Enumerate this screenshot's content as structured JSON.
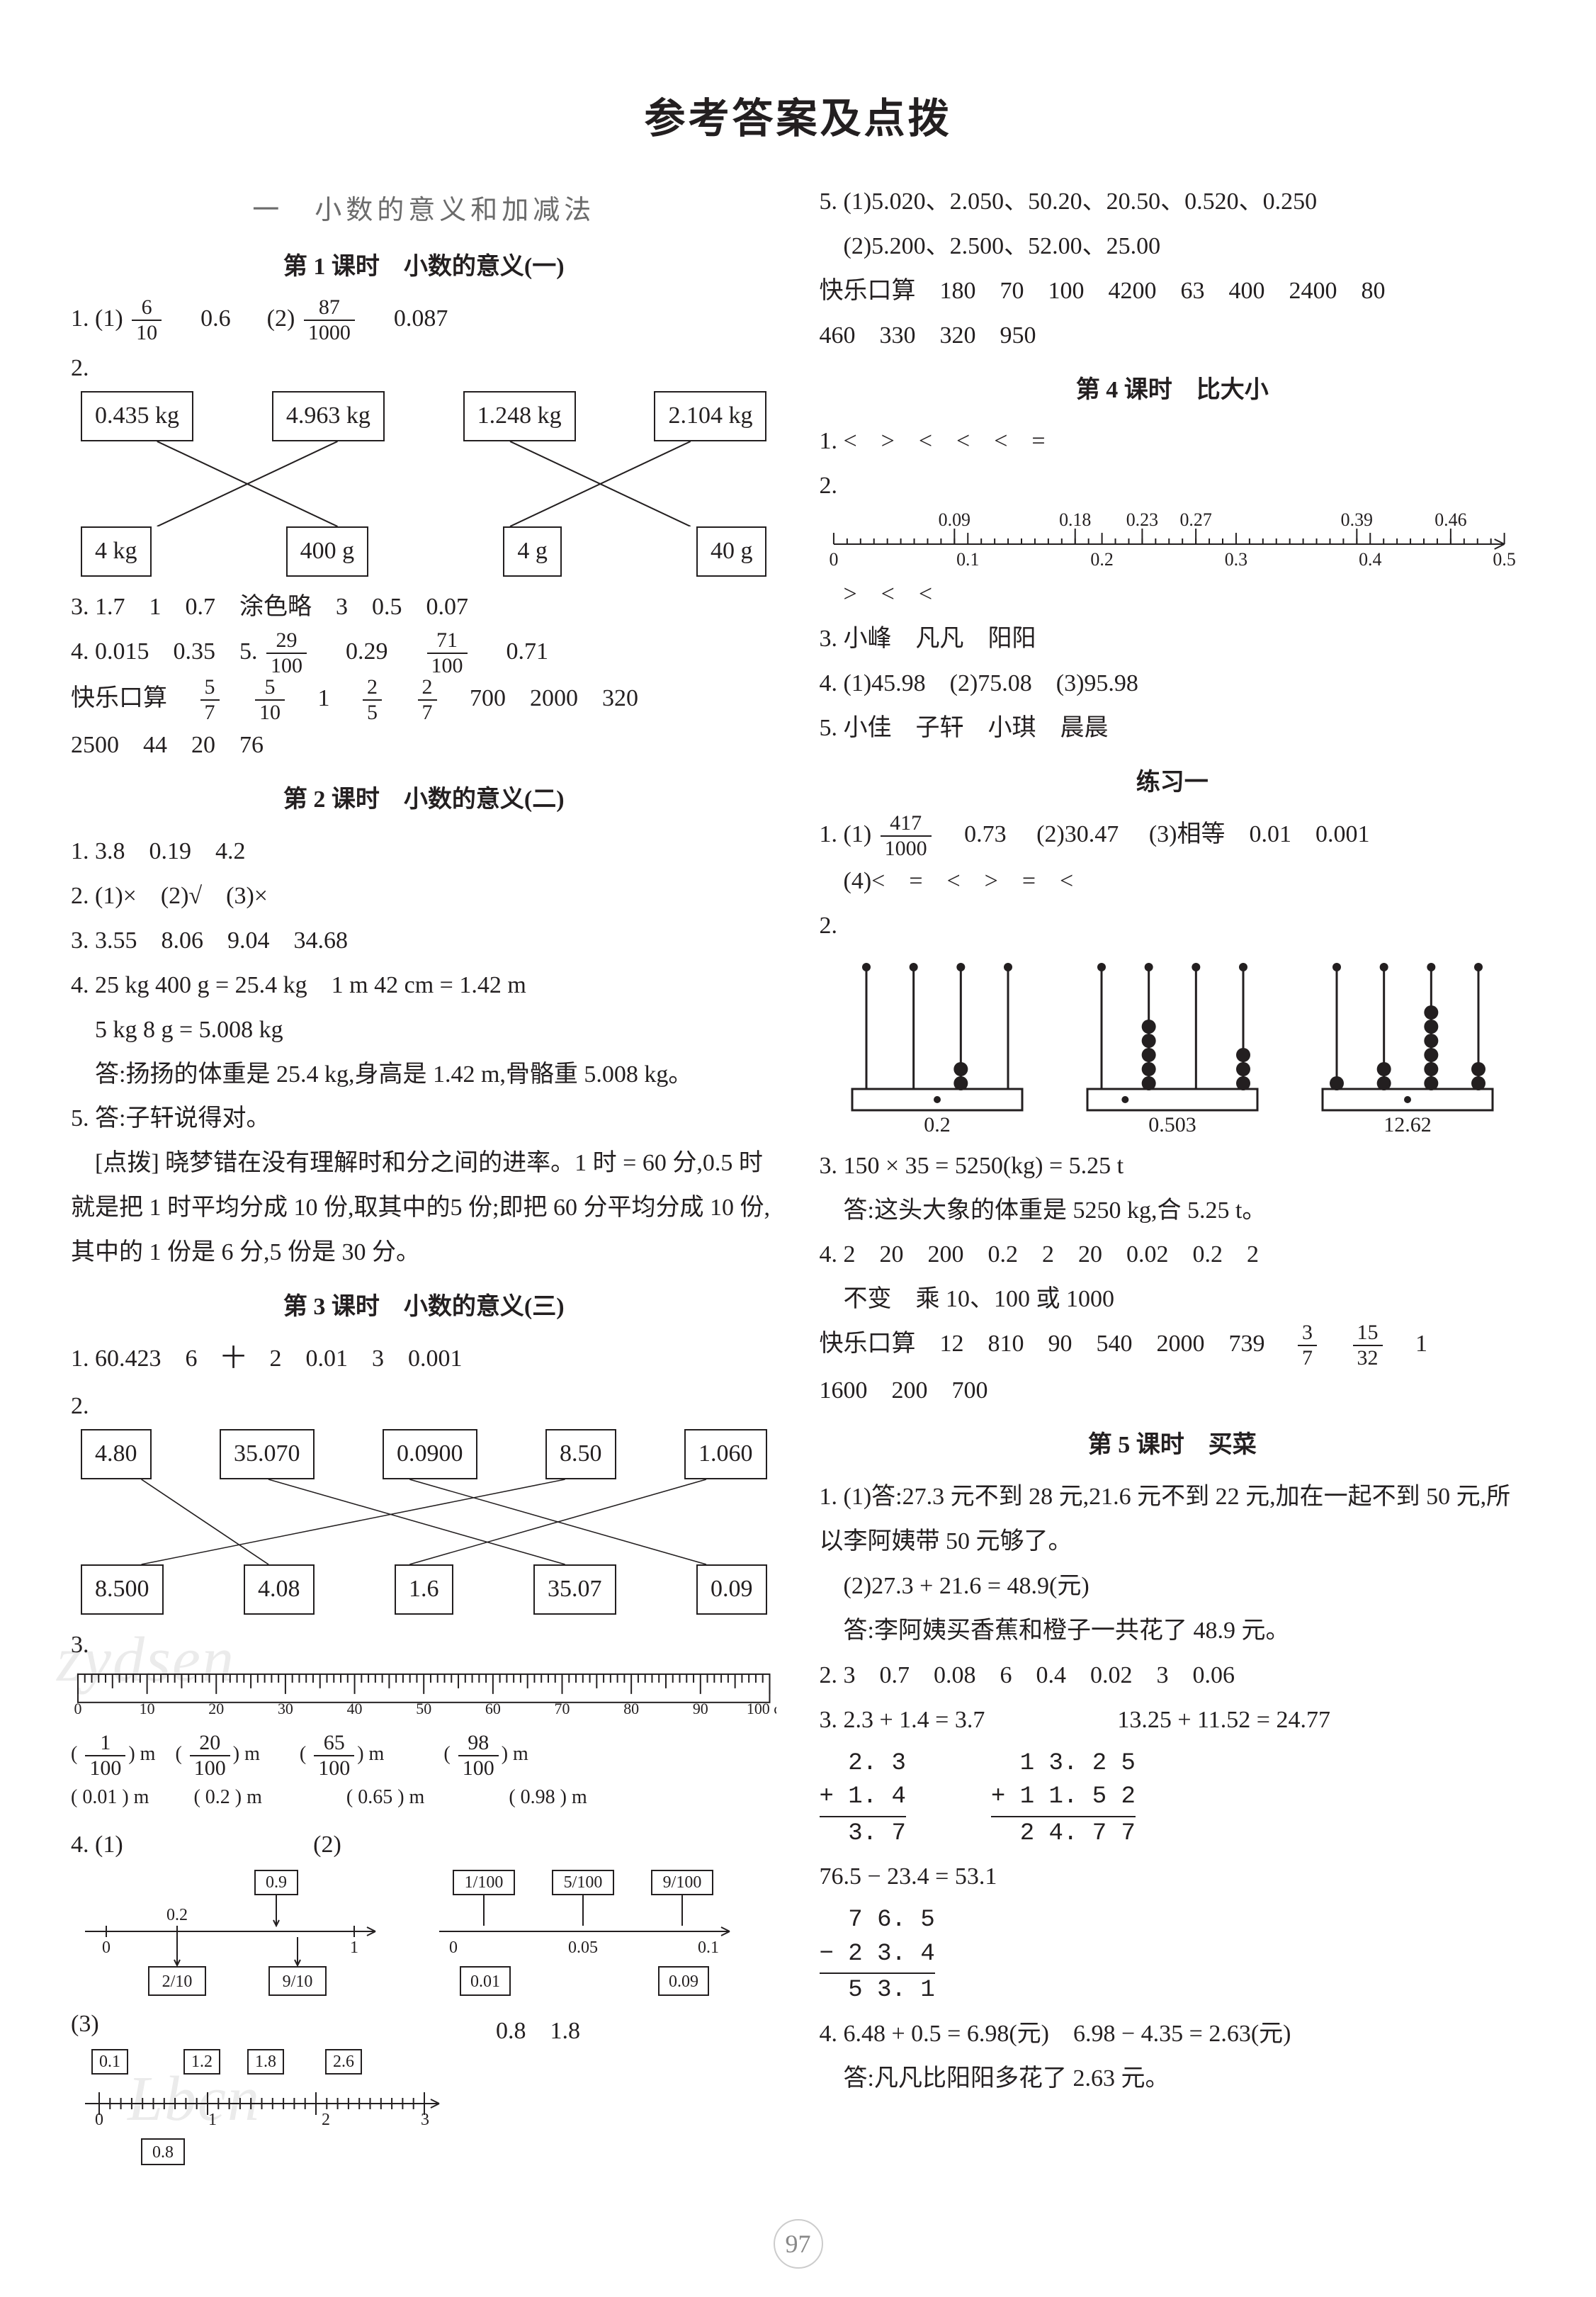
{
  "page_title": "参考答案及点拨",
  "page_number": "97",
  "watermarks": [
    "zydsen",
    "Lbcn"
  ],
  "left": {
    "unit_title": "一　小数的意义和加减法",
    "l1": {
      "title": "第 1 课时　小数的意义(一)",
      "q1_prefix": "1. (1)",
      "q1_frac_num": "6",
      "q1_frac_den": "10",
      "q1_v1": "0.6",
      "q1_p2": "(2)",
      "q1_frac2_num": "87",
      "q1_frac2_den": "1000",
      "q1_v2": "0.087",
      "q2_prefix": "2.",
      "q2_top": [
        "0.435 kg",
        "4.963 kg",
        "1.248 kg",
        "2.104 kg"
      ],
      "q2_bot": [
        "4 kg",
        "400 g",
        "4 g",
        "40 g"
      ],
      "q3": "3. 1.7　1　0.7　涂色略　3　0.5　0.07",
      "q4_prefix": "4. 0.015　0.35　5.",
      "q4_frac1_num": "29",
      "q4_frac1_den": "100",
      "q4_v1": "0.29",
      "q4_frac2_num": "71",
      "q4_frac2_den": "100",
      "q4_v2": "0.71",
      "klks_label": "快乐口算",
      "klks_f1_num": "5",
      "klks_f1_den": "7",
      "klks_f2_num": "5",
      "klks_f2_den": "10",
      "klks_v1": "1",
      "klks_f3_num": "2",
      "klks_f3_den": "5",
      "klks_f4_num": "2",
      "klks_f4_den": "7",
      "klks_tail": "700　2000　320",
      "klks_line2": "2500　44　20　76"
    },
    "l2": {
      "title": "第 2 课时　小数的意义(二)",
      "q1": "1. 3.8　0.19　4.2",
      "q2": "2. (1)×　(2)√　(3)×",
      "q3": "3. 3.55　8.06　9.04　34.68",
      "q4a": "4. 25 kg 400 g = 25.4 kg　1 m 42 cm = 1.42 m",
      "q4b": "　5 kg 8 g = 5.008 kg",
      "q4c": "　答:扬扬的体重是 25.4 kg,身高是 1.42 m,骨骼重 5.008 kg。",
      "q5a": "5. 答:子轩说得对。",
      "q5b": "　[点拨] 晓梦错在没有理解时和分之间的进率。1 时 = 60 分,0.5 时就是把 1 时平均分成 10 份,取其中的5 份;即把 60 分平均分成 10 份,其中的 1 份是 6 分,5 份是 30 分。"
    },
    "l3": {
      "title": "第 3 课时　小数的意义(三)",
      "q1": "1. 60.423　6　十　2　0.01　3　0.001",
      "q2_prefix": "2.",
      "q2_top": [
        "4.80",
        "35.070",
        "0.0900",
        "8.50",
        "1.060"
      ],
      "q2_bot": [
        "8.500",
        "4.08",
        "1.6",
        "35.07",
        "0.09"
      ],
      "q3_prefix": "3.",
      "ruler_ticks": [
        "0",
        "10",
        "20",
        "30",
        "40",
        "50",
        "60",
        "70",
        "80",
        "90",
        "100 cm"
      ],
      "ruler_row1": [
        {
          "num": "1",
          "den": "100",
          "suf": ") m"
        },
        {
          "num": "20",
          "den": "100",
          "suf": ") m"
        },
        {
          "num": "65",
          "den": "100",
          "suf": ") m"
        },
        {
          "num": "98",
          "den": "100",
          "suf": ") m"
        }
      ],
      "ruler_row2": [
        "( 0.01 ) m",
        "( 0.2 ) m",
        "( 0.65 ) m",
        "( 0.98 ) m"
      ],
      "q4_prefix": "4. (1)",
      "nl1": {
        "ticks": [
          "0",
          "0.2",
          "1"
        ],
        "top_boxes": [
          "0.9"
        ],
        "bot_boxes": [
          "2/10",
          "9/10"
        ]
      },
      "q4_p2": "(2)",
      "nl2": {
        "top_boxes": [
          "1/100",
          "5/100",
          "9/100"
        ],
        "ticks": [
          "0",
          "0.05",
          "0.1"
        ],
        "bot_boxes": [
          "0.01",
          "0.09"
        ]
      },
      "q4_p3": "(3)",
      "nl3": {
        "top_boxes": [
          "0.1",
          "1.2",
          "1.8",
          "2.6"
        ],
        "ticks": [
          "0",
          "1",
          "2",
          "3"
        ],
        "bot_box": "0.8",
        "tail": "0.8　1.8"
      }
    }
  },
  "right": {
    "cont_l3": {
      "q5a": "5. (1)5.020、2.050、50.20、20.50、0.520、0.250",
      "q5b": "　(2)5.200、2.500、52.00、25.00",
      "klks": "快乐口算　180　70　100　4200　63　400　2400　80",
      "klks2": "460　330　320　950"
    },
    "l4": {
      "title": "第 4 课时　比大小",
      "q1": "1. <　>　<　<　<　=",
      "q2_prefix": "2.",
      "nl_ticks": [
        "0",
        "0.1",
        "0.2",
        "0.3",
        "0.4",
        "0.5"
      ],
      "nl_marks": [
        "0.09",
        "0.18",
        "0.23",
        "0.27",
        "0.39",
        "0.46"
      ],
      "q2_tail": "　>　<　<",
      "q3": "3. 小峰　凡凡　阳阳",
      "q4": "4. (1)45.98　(2)75.08　(3)95.98",
      "q5": "5. 小佳　子轩　小琪　晨晨"
    },
    "ex1": {
      "title": "练习一",
      "q1_prefix": "1. (1)",
      "q1_frac_num": "417",
      "q1_frac_den": "1000",
      "q1_v1": "0.73",
      "q1_p2": "(2)30.47",
      "q1_p3": "(3)相等　0.01　0.001",
      "q1_p4": "　(4)<　=　<　>　=　<",
      "q2_prefix": "2.",
      "abacus": [
        {
          "label": "0.2",
          "rods": [
            0,
            0,
            2,
            0
          ],
          "dot_after": 1
        },
        {
          "label": "0.503",
          "rods": [
            0,
            5,
            0,
            3
          ],
          "dot_after": 0
        },
        {
          "label": "12.62",
          "rods": [
            1,
            2,
            6,
            2
          ],
          "dot_after": 1
        }
      ],
      "q3a": "3. 150 × 35 = 5250(kg) = 5.25 t",
      "q3b": "　答:这头大象的体重是 5250 kg,合 5.25 t。",
      "q4a": "4. 2　20　200　0.2　2　20　0.02　0.2　2",
      "q4b": "　不变　乘 10、100 或 1000",
      "klks_prefix": "快乐口算　12　810　90　540　2000　739",
      "klks_f1_num": "3",
      "klks_f1_den": "7",
      "klks_f2_num": "15",
      "klks_f2_den": "32",
      "klks_tail": "1",
      "klks2": "1600　200　700"
    },
    "l5": {
      "title": "第 5 课时　买菜",
      "q1a": "1. (1)答:27.3 元不到 28 元,21.6 元不到 22 元,加在一起不到 50 元,所以李阿姨带 50 元够了。",
      "q1b": "　(2)27.3 + 21.6 = 48.9(元)",
      "q1c": "　答:李阿姨买香蕉和橙子一共花了 48.9 元。",
      "q2": "2. 3　0.7　0.08　6　0.4　0.02　3　0.06",
      "q3_head": "3.",
      "eq1": "2.3 + 1.4 = 3.7",
      "eq2": "13.25 + 11.52 = 24.77",
      "vc1": [
        "  2. 3",
        "+ 1. 4",
        "  3. 7"
      ],
      "vc2": [
        "  1 3. 2 5",
        "+ 1 1. 5 2",
        "  2 4. 7 7"
      ],
      "eq3": "76.5 − 23.4 = 53.1",
      "vc3": [
        "  7 6. 5",
        "− 2 3. 4",
        "  5 3. 1"
      ],
      "q4a": "4. 6.48 + 0.5 = 6.98(元)　6.98 − 4.35 = 2.63(元)",
      "q4b": "　答:凡凡比阳阳多花了 2.63 元。"
    }
  }
}
